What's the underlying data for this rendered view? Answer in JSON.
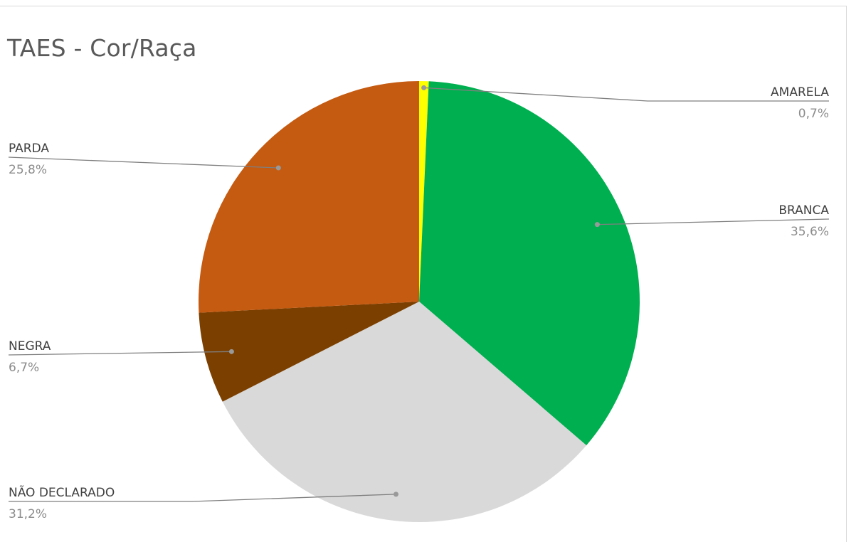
{
  "chart_data": {
    "type": "pie",
    "title": "TAES - Cor/Raça",
    "slices": [
      {
        "label": "AMARELA",
        "value": 0.7,
        "display": "0,7%",
        "color": "#ffff00"
      },
      {
        "label": "BRANCA",
        "value": 35.6,
        "display": "35,6%",
        "color": "#00b050"
      },
      {
        "label": "NÃO DECLARADO",
        "value": 31.2,
        "display": "31,2%",
        "color": "#d9d9d9"
      },
      {
        "label": "NEGRA",
        "value": 6.7,
        "display": "6,7%",
        "color": "#7b3f00"
      },
      {
        "label": "PARDA",
        "value": 25.8,
        "display": "25,8%",
        "color": "#c55a11"
      }
    ],
    "legend": "none"
  }
}
